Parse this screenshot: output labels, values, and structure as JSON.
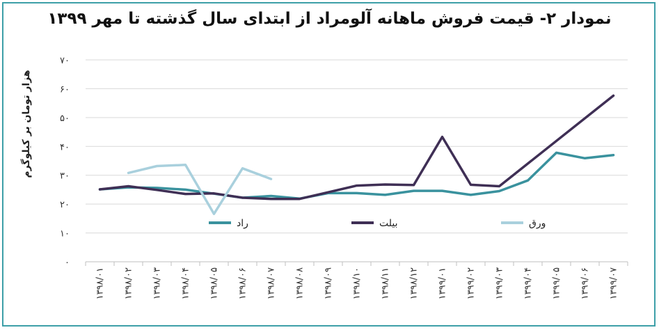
{
  "chart_data": {
    "type": "line",
    "title": "نمودار ۲- قیمت فروش ماهانه آلومراد از ابتدای سال گذشته تا مهر ۱۳۹۹",
    "xlabel": "",
    "ylabel": "هزار تومان بر کیلوگرم",
    "ylim": [
      0,
      70
    ],
    "y_ticks": [
      0,
      10,
      20,
      30,
      40,
      50,
      60,
      70
    ],
    "y_tick_labels": [
      "۰",
      "۱۰",
      "۲۰",
      "۳۰",
      "۴۰",
      "۵۰",
      "۶۰",
      "۷۰"
    ],
    "grid": true,
    "legend_position": "bottom-inside",
    "categories": [
      "۱۳۹۸/۰۱",
      "۱۳۹۸/۰۲",
      "۱۳۹۸/۰۳",
      "۱۳۹۸/۰۴",
      "۱۳۹۸/۰۵",
      "۱۳۹۸/۰۶",
      "۱۳۹۸/۰۷",
      "۱۳۹۸/۰۸",
      "۱۳۹۸/۰۹",
      "۱۳۹۸/۱۰",
      "۱۳۹۸/۱۱",
      "۱۳۹۸/۱۲",
      "۱۳۹۹/۰۱",
      "۱۳۹۹/۰۲",
      "۱۳۹۹/۰۳",
      "۱۳۹۹/۰۴",
      "۱۳۹۹/۰۵",
      "۱۳۹۹/۰۶",
      "۱۳۹۹/۰۷"
    ],
    "series": [
      {
        "name": "راد",
        "color": "#3a929e",
        "values": [
          25.1,
          25.8,
          25.6,
          25.0,
          23.6,
          22.2,
          22.8,
          21.9,
          23.8,
          23.8,
          23.2,
          24.6,
          24.6,
          23.2,
          24.5,
          28.2,
          37.8,
          35.9,
          37.0
        ]
      },
      {
        "name": "بیلت",
        "color": "#3f2f55",
        "values": [
          25.1,
          26.2,
          24.9,
          23.5,
          23.7,
          22.2,
          21.8,
          21.8,
          24.1,
          26.4,
          26.8,
          26.6,
          43.3,
          26.7,
          26.2,
          null,
          null,
          null,
          57.6
        ]
      },
      {
        "name": "ورق",
        "color": "#a9d0dd",
        "values": [
          null,
          30.8,
          33.2,
          33.6,
          16.6,
          32.4,
          28.7,
          null,
          null,
          null,
          null,
          null,
          null,
          null,
          null,
          null,
          null,
          null,
          null
        ]
      }
    ]
  }
}
